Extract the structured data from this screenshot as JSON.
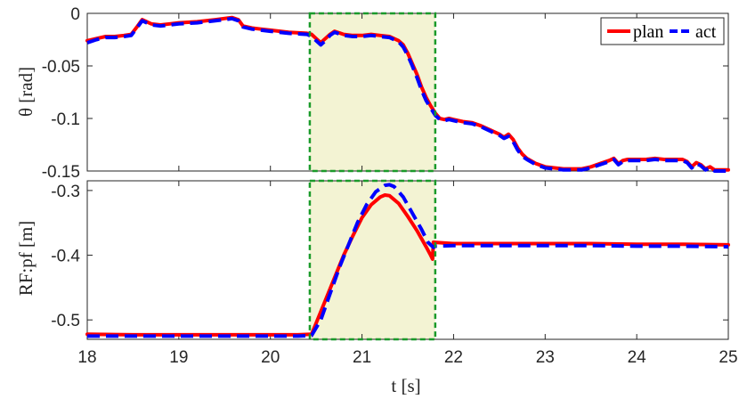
{
  "chart_data": [
    {
      "type": "line",
      "ylabel": "θ [rad]",
      "xlim": [
        18,
        25
      ],
      "ylim": [
        -0.15,
        0
      ],
      "yticks": [
        "0",
        "-0.05",
        "-0.1",
        "-0.15"
      ],
      "highlight": {
        "x_start": 20.43,
        "x_end": 21.8,
        "fill": "#f3f3d3",
        "stroke": "#1a9a2a"
      },
      "legend": {
        "position": "top-right",
        "entries": [
          "plan",
          "act"
        ]
      },
      "series": [
        {
          "name": "plan",
          "color": "#ff0000",
          "style": "solid",
          "points": [
            [
              18.0,
              -0.026
            ],
            [
              18.1,
              -0.024
            ],
            [
              18.2,
              -0.022
            ],
            [
              18.3,
              -0.022
            ],
            [
              18.4,
              -0.021
            ],
            [
              18.48,
              -0.02
            ],
            [
              18.55,
              -0.012
            ],
            [
              18.6,
              -0.006
            ],
            [
              18.7,
              -0.01
            ],
            [
              18.8,
              -0.011
            ],
            [
              18.9,
              -0.01
            ],
            [
              19.0,
              -0.009
            ],
            [
              19.2,
              -0.008
            ],
            [
              19.4,
              -0.006
            ],
            [
              19.58,
              -0.004
            ],
            [
              19.65,
              -0.006
            ],
            [
              19.7,
              -0.012
            ],
            [
              19.8,
              -0.014
            ],
            [
              19.9,
              -0.015
            ],
            [
              20.0,
              -0.016
            ],
            [
              20.2,
              -0.018
            ],
            [
              20.4,
              -0.019
            ],
            [
              20.45,
              -0.02
            ],
            [
              20.5,
              -0.024
            ],
            [
              20.55,
              -0.028
            ],
            [
              20.6,
              -0.024
            ],
            [
              20.65,
              -0.02
            ],
            [
              20.7,
              -0.017
            ],
            [
              20.8,
              -0.02
            ],
            [
              20.9,
              -0.021
            ],
            [
              21.0,
              -0.021
            ],
            [
              21.1,
              -0.02
            ],
            [
              21.2,
              -0.021
            ],
            [
              21.3,
              -0.022
            ],
            [
              21.4,
              -0.026
            ],
            [
              21.45,
              -0.03
            ],
            [
              21.5,
              -0.038
            ],
            [
              21.55,
              -0.048
            ],
            [
              21.6,
              -0.058
            ],
            [
              21.65,
              -0.07
            ],
            [
              21.7,
              -0.08
            ],
            [
              21.75,
              -0.088
            ],
            [
              21.8,
              -0.095
            ],
            [
              21.85,
              -0.1
            ],
            [
              21.9,
              -0.101
            ],
            [
              21.95,
              -0.1
            ],
            [
              22.0,
              -0.101
            ],
            [
              22.1,
              -0.103
            ],
            [
              22.2,
              -0.104
            ],
            [
              22.3,
              -0.107
            ],
            [
              22.4,
              -0.111
            ],
            [
              22.5,
              -0.115
            ],
            [
              22.55,
              -0.118
            ],
            [
              22.6,
              -0.115
            ],
            [
              22.65,
              -0.12
            ],
            [
              22.7,
              -0.128
            ],
            [
              22.75,
              -0.134
            ],
            [
              22.8,
              -0.138
            ],
            [
              22.9,
              -0.143
            ],
            [
              23.0,
              -0.146
            ],
            [
              23.1,
              -0.147
            ],
            [
              23.2,
              -0.148
            ],
            [
              23.3,
              -0.148
            ],
            [
              23.4,
              -0.148
            ],
            [
              23.5,
              -0.146
            ],
            [
              23.6,
              -0.143
            ],
            [
              23.7,
              -0.14
            ],
            [
              23.75,
              -0.138
            ],
            [
              23.8,
              -0.143
            ],
            [
              23.85,
              -0.14
            ],
            [
              23.9,
              -0.139
            ],
            [
              24.0,
              -0.139
            ],
            [
              24.1,
              -0.139
            ],
            [
              24.2,
              -0.138
            ],
            [
              24.3,
              -0.139
            ],
            [
              24.4,
              -0.139
            ],
            [
              24.5,
              -0.139
            ],
            [
              24.55,
              -0.141
            ],
            [
              24.6,
              -0.146
            ],
            [
              24.65,
              -0.142
            ],
            [
              24.7,
              -0.144
            ],
            [
              24.75,
              -0.148
            ],
            [
              24.8,
              -0.146
            ],
            [
              24.85,
              -0.149
            ],
            [
              24.9,
              -0.149
            ],
            [
              24.95,
              -0.149
            ],
            [
              25.0,
              -0.149
            ]
          ]
        },
        {
          "name": "act",
          "color": "#0000ff",
          "style": "dashed",
          "points": [
            [
              18.0,
              -0.028
            ],
            [
              18.1,
              -0.025
            ],
            [
              18.2,
              -0.023
            ],
            [
              18.3,
              -0.023
            ],
            [
              18.4,
              -0.022
            ],
            [
              18.48,
              -0.021
            ],
            [
              18.55,
              -0.013
            ],
            [
              18.6,
              -0.007
            ],
            [
              18.7,
              -0.011
            ],
            [
              18.8,
              -0.012
            ],
            [
              18.9,
              -0.011
            ],
            [
              19.0,
              -0.01
            ],
            [
              19.2,
              -0.009
            ],
            [
              19.4,
              -0.007
            ],
            [
              19.58,
              -0.005
            ],
            [
              19.65,
              -0.007
            ],
            [
              19.7,
              -0.013
            ],
            [
              19.8,
              -0.015
            ],
            [
              19.9,
              -0.016
            ],
            [
              20.0,
              -0.017
            ],
            [
              20.2,
              -0.019
            ],
            [
              20.4,
              -0.02
            ],
            [
              20.45,
              -0.022
            ],
            [
              20.5,
              -0.026
            ],
            [
              20.55,
              -0.03
            ],
            [
              20.6,
              -0.026
            ],
            [
              20.65,
              -0.021
            ],
            [
              20.7,
              -0.018
            ],
            [
              20.8,
              -0.021
            ],
            [
              20.9,
              -0.022
            ],
            [
              21.0,
              -0.022
            ],
            [
              21.1,
              -0.021
            ],
            [
              21.2,
              -0.022
            ],
            [
              21.3,
              -0.023
            ],
            [
              21.4,
              -0.027
            ],
            [
              21.45,
              -0.032
            ],
            [
              21.5,
              -0.04
            ],
            [
              21.55,
              -0.05
            ],
            [
              21.6,
              -0.061
            ],
            [
              21.65,
              -0.073
            ],
            [
              21.7,
              -0.083
            ],
            [
              21.75,
              -0.09
            ],
            [
              21.8,
              -0.097
            ],
            [
              21.85,
              -0.101
            ],
            [
              21.9,
              -0.102
            ],
            [
              21.95,
              -0.101
            ],
            [
              22.0,
              -0.102
            ],
            [
              22.1,
              -0.104
            ],
            [
              22.2,
              -0.105
            ],
            [
              22.3,
              -0.108
            ],
            [
              22.4,
              -0.112
            ],
            [
              22.5,
              -0.116
            ],
            [
              22.55,
              -0.119
            ],
            [
              22.6,
              -0.117
            ],
            [
              22.65,
              -0.122
            ],
            [
              22.7,
              -0.13
            ],
            [
              22.75,
              -0.136
            ],
            [
              22.8,
              -0.139
            ],
            [
              22.9,
              -0.144
            ],
            [
              23.0,
              -0.147
            ],
            [
              23.1,
              -0.148
            ],
            [
              23.2,
              -0.149
            ],
            [
              23.3,
              -0.149
            ],
            [
              23.4,
              -0.149
            ],
            [
              23.5,
              -0.147
            ],
            [
              23.6,
              -0.144
            ],
            [
              23.7,
              -0.141
            ],
            [
              23.75,
              -0.139
            ],
            [
              23.8,
              -0.144
            ],
            [
              23.85,
              -0.141
            ],
            [
              23.9,
              -0.14
            ],
            [
              24.0,
              -0.14
            ],
            [
              24.1,
              -0.14
            ],
            [
              24.2,
              -0.139
            ],
            [
              24.3,
              -0.14
            ],
            [
              24.4,
              -0.14
            ],
            [
              24.5,
              -0.14
            ],
            [
              24.55,
              -0.142
            ],
            [
              24.6,
              -0.147
            ],
            [
              24.65,
              -0.143
            ],
            [
              24.7,
              -0.145
            ],
            [
              24.75,
              -0.149
            ],
            [
              24.8,
              -0.147
            ],
            [
              24.85,
              -0.15
            ],
            [
              24.9,
              -0.15
            ],
            [
              24.95,
              -0.15
            ],
            [
              25.0,
              -0.15
            ]
          ]
        }
      ]
    },
    {
      "type": "line",
      "ylabel": "RF:pf [m]",
      "xlabel": "t [s]",
      "xlim": [
        18,
        25
      ],
      "ylim": [
        -0.53,
        -0.285
      ],
      "yticks": [
        "-0.3",
        "-0.4",
        "-0.5"
      ],
      "xticks": [
        "18",
        "19",
        "20",
        "21",
        "22",
        "23",
        "24",
        "25"
      ],
      "highlight": {
        "x_start": 20.43,
        "x_end": 21.8,
        "fill": "#f3f3d3",
        "stroke": "#1a9a2a"
      },
      "series": [
        {
          "name": "plan",
          "color": "#ff0000",
          "style": "solid",
          "points": [
            [
              18.0,
              -0.522
            ],
            [
              18.5,
              -0.523
            ],
            [
              19.0,
              -0.523
            ],
            [
              19.5,
              -0.523
            ],
            [
              20.0,
              -0.523
            ],
            [
              20.3,
              -0.523
            ],
            [
              20.45,
              -0.522
            ],
            [
              20.5,
              -0.505
            ],
            [
              20.6,
              -0.47
            ],
            [
              20.7,
              -0.435
            ],
            [
              20.8,
              -0.4
            ],
            [
              20.9,
              -0.37
            ],
            [
              21.0,
              -0.342
            ],
            [
              21.1,
              -0.322
            ],
            [
              21.2,
              -0.31
            ],
            [
              21.25,
              -0.307
            ],
            [
              21.3,
              -0.308
            ],
            [
              21.4,
              -0.32
            ],
            [
              21.5,
              -0.34
            ],
            [
              21.6,
              -0.362
            ],
            [
              21.7,
              -0.387
            ],
            [
              21.75,
              -0.4
            ],
            [
              21.77,
              -0.406
            ],
            [
              21.78,
              -0.38
            ],
            [
              22.0,
              -0.382
            ],
            [
              22.5,
              -0.382
            ],
            [
              23.0,
              -0.382
            ],
            [
              23.5,
              -0.382
            ],
            [
              24.0,
              -0.383
            ],
            [
              24.5,
              -0.383
            ],
            [
              25.0,
              -0.384
            ]
          ]
        },
        {
          "name": "act",
          "color": "#0000ff",
          "style": "dashed",
          "points": [
            [
              18.0,
              -0.525
            ],
            [
              18.5,
              -0.525
            ],
            [
              19.0,
              -0.525
            ],
            [
              19.5,
              -0.525
            ],
            [
              20.0,
              -0.525
            ],
            [
              20.3,
              -0.525
            ],
            [
              20.45,
              -0.524
            ],
            [
              20.55,
              -0.5
            ],
            [
              20.65,
              -0.46
            ],
            [
              20.75,
              -0.42
            ],
            [
              20.85,
              -0.385
            ],
            [
              20.95,
              -0.35
            ],
            [
              21.05,
              -0.322
            ],
            [
              21.15,
              -0.302
            ],
            [
              21.25,
              -0.292
            ],
            [
              21.3,
              -0.291
            ],
            [
              21.35,
              -0.294
            ],
            [
              21.45,
              -0.31
            ],
            [
              21.55,
              -0.335
            ],
            [
              21.65,
              -0.36
            ],
            [
              21.72,
              -0.38
            ],
            [
              21.78,
              -0.388
            ],
            [
              21.8,
              -0.386
            ],
            [
              22.0,
              -0.385
            ],
            [
              22.5,
              -0.385
            ],
            [
              23.0,
              -0.385
            ],
            [
              23.5,
              -0.385
            ],
            [
              24.0,
              -0.386
            ],
            [
              24.5,
              -0.386
            ],
            [
              25.0,
              -0.387
            ]
          ]
        }
      ]
    }
  ]
}
